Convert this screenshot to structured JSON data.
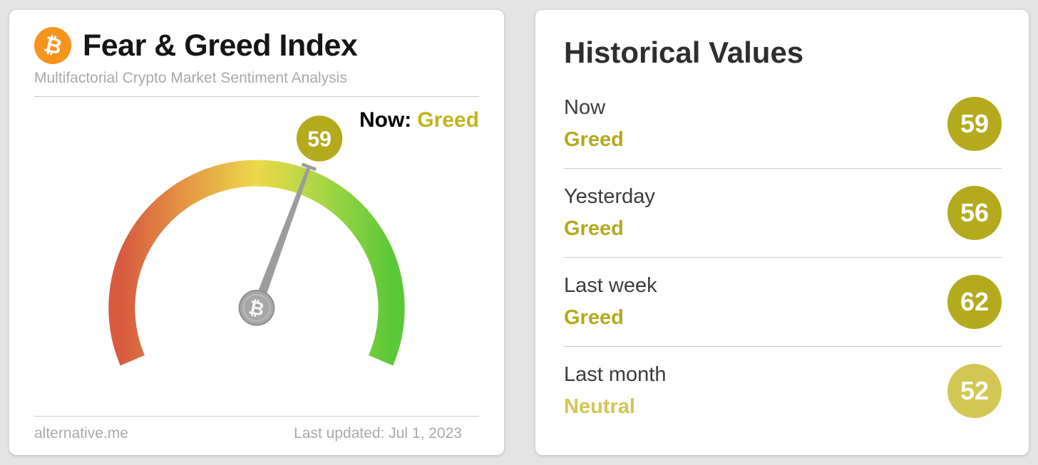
{
  "colors": {
    "page_bg": "#e4e4e4",
    "bitcoin_orange": "#f7941d",
    "greed": "#b4aa1d",
    "neutral": "#d2c752",
    "now_classification": "#c0b41c",
    "gauge_needle": "#9c9c9c",
    "gauge_hub": "#a6a6a6"
  },
  "left_card": {
    "bitcoin_glyph": "₿",
    "title": "Fear & Greed Index",
    "subtitle": "Multifactorial Crypto Market Sentiment Analysis",
    "now_label": "Now:",
    "now_classification": "Greed",
    "source": "alternative.me",
    "last_updated": "Last updated: Jul 1, 2023"
  },
  "right_card": {
    "title": "Historical Values",
    "rows": [
      {
        "label": "Now",
        "classification": "Greed",
        "value": "59",
        "color": "#b4aa1d"
      },
      {
        "label": "Yesterday",
        "classification": "Greed",
        "value": "56",
        "color": "#b4aa1d"
      },
      {
        "label": "Last week",
        "classification": "Greed",
        "value": "62",
        "color": "#b4aa1d"
      },
      {
        "label": "Last month",
        "classification": "Neutral",
        "value": "52",
        "color": "#d2c752"
      }
    ]
  },
  "chart_data": {
    "type": "gauge",
    "title": "Fear & Greed Index",
    "value": 59,
    "min": 0,
    "max": 100,
    "classification": "Greed",
    "value_badge_color": "#b4aa1d",
    "arc_start_deg": 203,
    "arc_end_deg": -23,
    "gradient_stops": [
      "#d85b40",
      "#e59a44",
      "#ecd94a",
      "#a7d645",
      "#5bc838"
    ],
    "historical": [
      {
        "label": "Now",
        "classification": "Greed",
        "value": 59
      },
      {
        "label": "Yesterday",
        "classification": "Greed",
        "value": 56
      },
      {
        "label": "Last week",
        "classification": "Greed",
        "value": 62
      },
      {
        "label": "Last month",
        "classification": "Neutral",
        "value": 52
      }
    ]
  }
}
